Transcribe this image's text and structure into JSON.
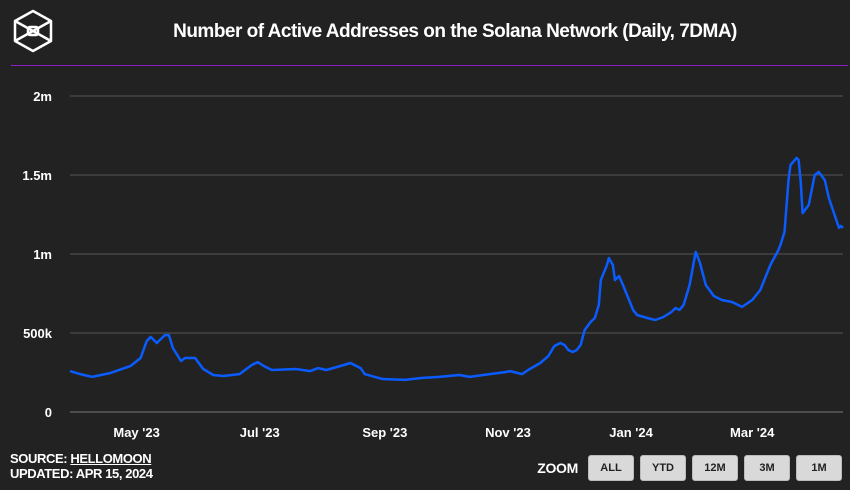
{
  "header": {
    "title": "Number of Active Addresses on the Solana Network (Daily, 7DMA)",
    "logo": "hexagon-cube-logo"
  },
  "footer": {
    "source_prefix": "SOURCE: ",
    "source_link": "HELLOMOON",
    "updated": "UPDATED: APR 15, 2024"
  },
  "zoom": {
    "label": "ZOOM",
    "buttons": [
      "ALL",
      "YTD",
      "12M",
      "3M",
      "1M"
    ]
  },
  "colors": {
    "background": "#222222",
    "line": "#0a5cff",
    "accent_rule": "#8a1fc8",
    "grid": "#555555"
  },
  "chart_data": {
    "type": "line",
    "title": "Number of Active Addresses on the Solana Network (Daily, 7DMA)",
    "xlabel": "",
    "ylabel": "",
    "xlim": [
      "2023-03-29",
      "2024-04-15"
    ],
    "ylim": [
      0,
      2000000
    ],
    "grid": true,
    "legend": "none",
    "x_ticks": [
      {
        "date": "2023-05-01",
        "label": "May '23"
      },
      {
        "date": "2023-07-01",
        "label": "Jul '23"
      },
      {
        "date": "2023-09-01",
        "label": "Sep '23"
      },
      {
        "date": "2023-11-01",
        "label": "Nov '23"
      },
      {
        "date": "2024-01-01",
        "label": "Jan '24"
      },
      {
        "date": "2024-03-01",
        "label": "Mar '24"
      }
    ],
    "y_ticks": [
      {
        "value": 0,
        "label": "0"
      },
      {
        "value": 500000,
        "label": "500k"
      },
      {
        "value": 1000000,
        "label": "1m"
      },
      {
        "value": 1500000,
        "label": "1.5m"
      },
      {
        "value": 2000000,
        "label": "2m"
      }
    ],
    "series": [
      {
        "points": [
          [
            "2023-03-29",
            259000
          ],
          [
            "2023-04-03",
            240000
          ],
          [
            "2023-04-09",
            222000
          ],
          [
            "2023-04-18",
            247000
          ],
          [
            "2023-04-28",
            291000
          ],
          [
            "2023-05-03",
            342000
          ],
          [
            "2023-05-06",
            449000
          ],
          [
            "2023-05-08",
            475000
          ],
          [
            "2023-05-11",
            437000
          ],
          [
            "2023-05-15",
            487000
          ],
          [
            "2023-05-17",
            487000
          ],
          [
            "2023-05-19",
            405000
          ],
          [
            "2023-05-23",
            323000
          ],
          [
            "2023-05-25",
            342000
          ],
          [
            "2023-05-30",
            342000
          ],
          [
            "2023-06-03",
            272000
          ],
          [
            "2023-06-08",
            234000
          ],
          [
            "2023-06-13",
            228000
          ],
          [
            "2023-06-21",
            240000
          ],
          [
            "2023-06-27",
            297000
          ],
          [
            "2023-06-30",
            316000
          ],
          [
            "2023-07-03",
            291000
          ],
          [
            "2023-07-07",
            266000
          ],
          [
            "2023-07-19",
            272000
          ],
          [
            "2023-07-26",
            259000
          ],
          [
            "2023-07-30",
            278000
          ],
          [
            "2023-08-03",
            266000
          ],
          [
            "2023-08-10",
            291000
          ],
          [
            "2023-08-15",
            310000
          ],
          [
            "2023-08-20",
            278000
          ],
          [
            "2023-08-22",
            240000
          ],
          [
            "2023-08-27",
            222000
          ],
          [
            "2023-08-31",
            209000
          ],
          [
            "2023-09-11",
            203000
          ],
          [
            "2023-09-19",
            215000
          ],
          [
            "2023-09-28",
            222000
          ],
          [
            "2023-10-08",
            234000
          ],
          [
            "2023-10-13",
            222000
          ],
          [
            "2023-10-23",
            240000
          ],
          [
            "2023-10-31",
            253000
          ],
          [
            "2023-11-02",
            259000
          ],
          [
            "2023-11-08",
            240000
          ],
          [
            "2023-11-11",
            266000
          ],
          [
            "2023-11-17",
            310000
          ],
          [
            "2023-11-21",
            354000
          ],
          [
            "2023-11-24",
            418000
          ],
          [
            "2023-11-27",
            437000
          ],
          [
            "2023-11-29",
            424000
          ],
          [
            "2023-12-01",
            392000
          ],
          [
            "2023-12-03",
            380000
          ],
          [
            "2023-12-05",
            392000
          ],
          [
            "2023-12-07",
            424000
          ],
          [
            "2023-12-09",
            519000
          ],
          [
            "2023-12-12",
            570000
          ],
          [
            "2023-12-14",
            595000
          ],
          [
            "2023-12-16",
            677000
          ],
          [
            "2023-12-17",
            835000
          ],
          [
            "2023-12-20",
            930000
          ],
          [
            "2023-12-21",
            975000
          ],
          [
            "2023-12-23",
            930000
          ],
          [
            "2023-12-24",
            835000
          ],
          [
            "2023-12-26",
            861000
          ],
          [
            "2023-12-28",
            804000
          ],
          [
            "2023-12-30",
            740000
          ],
          [
            "2024-01-02",
            646000
          ],
          [
            "2024-01-04",
            614000
          ],
          [
            "2024-01-09",
            595000
          ],
          [
            "2024-01-13",
            582000
          ],
          [
            "2024-01-17",
            601000
          ],
          [
            "2024-01-21",
            633000
          ],
          [
            "2024-01-23",
            658000
          ],
          [
            "2024-01-25",
            646000
          ],
          [
            "2024-01-27",
            677000
          ],
          [
            "2024-01-30",
            804000
          ],
          [
            "2024-02-02",
            1013000
          ],
          [
            "2024-02-04",
            949000
          ],
          [
            "2024-02-07",
            804000
          ],
          [
            "2024-02-11",
            734000
          ],
          [
            "2024-02-15",
            709000
          ],
          [
            "2024-02-20",
            696000
          ],
          [
            "2024-02-25",
            665000
          ],
          [
            "2024-03-01",
            709000
          ],
          [
            "2024-03-05",
            772000
          ],
          [
            "2024-03-10",
            930000
          ],
          [
            "2024-03-14",
            1025000
          ],
          [
            "2024-03-15",
            1057000
          ],
          [
            "2024-03-17",
            1139000
          ],
          [
            "2024-03-19",
            1468000
          ],
          [
            "2024-03-20",
            1563000
          ],
          [
            "2024-03-23",
            1608000
          ],
          [
            "2024-03-24",
            1595000
          ],
          [
            "2024-03-25",
            1468000
          ],
          [
            "2024-03-26",
            1259000
          ],
          [
            "2024-03-29",
            1310000
          ],
          [
            "2024-04-01",
            1500000
          ],
          [
            "2024-04-03",
            1519000
          ],
          [
            "2024-04-06",
            1468000
          ],
          [
            "2024-04-08",
            1354000
          ],
          [
            "2024-04-13",
            1165000
          ],
          [
            "2024-04-14",
            1177000
          ],
          [
            "2024-04-15",
            1165000
          ]
        ]
      }
    ]
  }
}
